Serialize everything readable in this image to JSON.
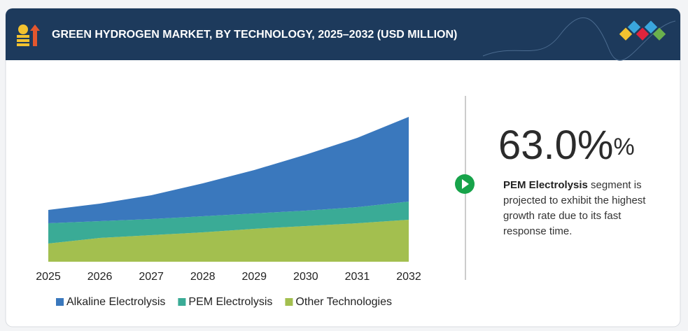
{
  "header": {
    "title": "GREEN HYDROGEN MARKET, BY TECHNOLOGY, 2025–2032 (USD MILLION)"
  },
  "chart_data": {
    "type": "stacked-area",
    "categories": [
      "2025",
      "2026",
      "2027",
      "2028",
      "2029",
      "2030",
      "2031",
      "2032"
    ],
    "series": [
      {
        "name": "Other Technologies",
        "color": "#a3bf4f",
        "values": [
          26,
          34,
          38,
          42,
          47,
          51,
          55,
          60
        ]
      },
      {
        "name": "PEM Electrolysis",
        "color": "#3aab96",
        "values": [
          29,
          24,
          23,
          23,
          22,
          22,
          23,
          26
        ]
      },
      {
        "name": "Alkaline Electrolysis",
        "color": "#3a78bd",
        "values": [
          19,
          25,
          34,
          47,
          62,
          80,
          99,
          121
        ]
      }
    ],
    "legend_order": [
      2,
      1,
      0
    ]
  },
  "highlight": {
    "value": "63.0%",
    "unit": "%",
    "segment": "PEM Electrolysis",
    "text": " segment is projected to exhibit the highest growth rate due to its fast response time."
  }
}
